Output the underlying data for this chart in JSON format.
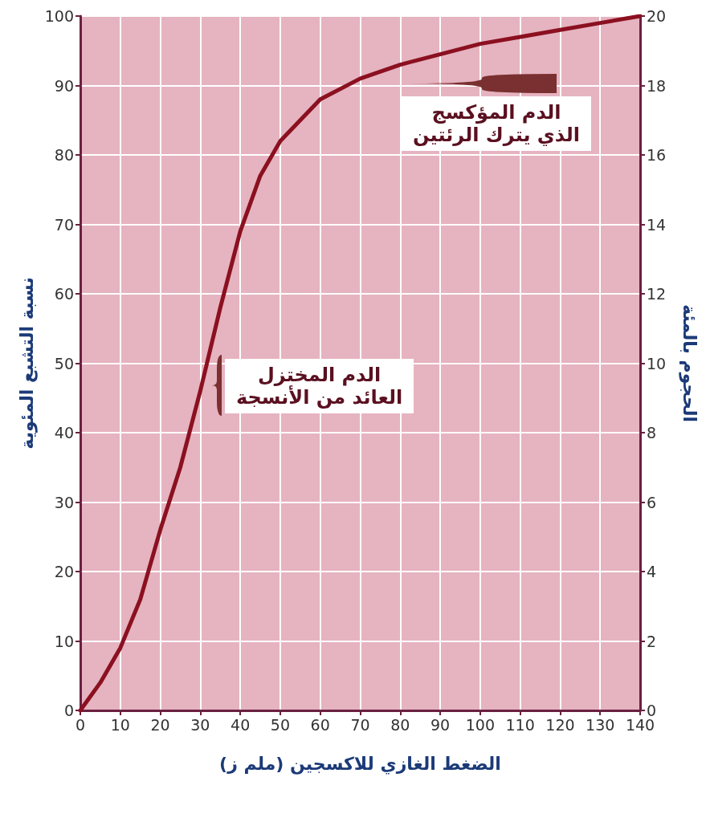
{
  "chart_data": {
    "type": "line",
    "xlabel": "الضغط الغازي للاكسجين (ملم ز)",
    "ylabel": "نسبة التشبع المئوية",
    "y2label": "الحجوم بالمئة",
    "x": [
      0,
      5,
      10,
      15,
      20,
      25,
      30,
      35,
      40,
      45,
      50,
      60,
      70,
      80,
      90,
      100,
      110,
      120,
      130,
      140
    ],
    "series": [
      {
        "color": "#8b1020",
        "values": [
          0,
          4,
          9,
          16,
          26,
          35,
          46,
          58,
          69,
          77,
          82,
          88,
          91,
          93,
          94.5,
          96,
          97,
          98,
          99,
          100
        ]
      }
    ],
    "xlim": [
      0,
      140
    ],
    "xticks": [
      0,
      10,
      20,
      30,
      40,
      50,
      60,
      70,
      80,
      90,
      100,
      110,
      120,
      130,
      140
    ],
    "ylim": [
      0,
      100
    ],
    "yticks": [
      0,
      10,
      20,
      30,
      40,
      50,
      60,
      70,
      80,
      90,
      100
    ],
    "y2lim": [
      0,
      20
    ],
    "y2ticks": [
      0,
      2,
      4,
      6,
      8,
      10,
      12,
      14,
      16,
      18,
      20
    ],
    "annotations": [
      "الدم المؤكسج\nالذي يترك الرئتين",
      "الدم المختزل\nالعائد من الأنسجة"
    ],
    "grid": true,
    "marker": "none",
    "line_style": "solid"
  }
}
